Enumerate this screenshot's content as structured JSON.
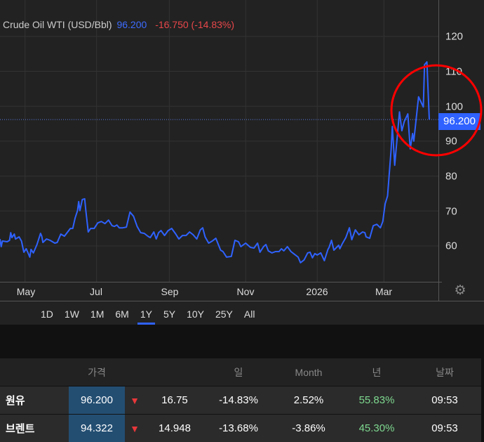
{
  "header": {
    "name": "Crude Oil WTI (USD/Bbl)",
    "price": "96.200",
    "change": "-16.750 (-14.83%)"
  },
  "colors": {
    "line": "#2f62ff",
    "down": "#e8474a",
    "up": "#7ed88f",
    "highlight_circle": "#ff0000"
  },
  "current_price_tag": "96.200",
  "chart_data": {
    "type": "line",
    "title": "Crude Oil WTI (USD/Bbl)",
    "xlabel": "",
    "ylabel": "",
    "ylim": [
      48,
      130
    ],
    "xlim": [
      0,
      367
    ],
    "y_ticks": [
      60,
      70,
      80,
      90,
      100,
      110,
      120
    ],
    "x_ticks": [
      {
        "label": "May",
        "day": 21
      },
      {
        "label": "Jul",
        "day": 81
      },
      {
        "label": "Sep",
        "day": 142
      },
      {
        "label": "Nov",
        "day": 206
      },
      {
        "label": "2026",
        "day": 266
      },
      {
        "label": "Mar",
        "day": 322
      }
    ],
    "grid": true,
    "last_value": 96.2,
    "annotation": "red circle around recent spike",
    "x": [
      0,
      1,
      2,
      6,
      8,
      9,
      10,
      12,
      13,
      16,
      18,
      20,
      22,
      25,
      26,
      28,
      31,
      34,
      35,
      36,
      39,
      42,
      46,
      48,
      51,
      54,
      59,
      61,
      63,
      65,
      66,
      67,
      69,
      71,
      72,
      74,
      76,
      79,
      82,
      85,
      88,
      91,
      94,
      96,
      98,
      100,
      103,
      106,
      109,
      112,
      115,
      118,
      121,
      124,
      126,
      129,
      131,
      133,
      135,
      138,
      141,
      144,
      147,
      150,
      153,
      156,
      159,
      162,
      165,
      168,
      170,
      172,
      175,
      178,
      181,
      185,
      187,
      190,
      194,
      197,
      200,
      202,
      206,
      210,
      213,
      216,
      218,
      221,
      223,
      225,
      228,
      231,
      234,
      236,
      238,
      241,
      244,
      247,
      250,
      252,
      255,
      258,
      260,
      262,
      264,
      266,
      269,
      272,
      275,
      276,
      278,
      280,
      284,
      285,
      287,
      290,
      293,
      295,
      298,
      301,
      304,
      306,
      307,
      310,
      313,
      316,
      319,
      321,
      323,
      325,
      328,
      329,
      331,
      335,
      337,
      339,
      342,
      344,
      346,
      347,
      351,
      355,
      356,
      358,
      360
    ],
    "values": [
      62.0,
      59.8,
      61.4,
      61.2,
      61.6,
      63.8,
      62.4,
      63.4,
      62.0,
      62.6,
      61.4,
      58.2,
      59.2,
      56.8,
      59.0,
      58.0,
      60.4,
      63.6,
      62.8,
      61.0,
      62.0,
      61.6,
      60.8,
      61.0,
      63.4,
      62.8,
      65.0,
      65.0,
      68.0,
      70.1,
      72.7,
      70.1,
      73.3,
      73.5,
      70.1,
      64.0,
      65.0,
      65.0,
      66.6,
      67.0,
      66.4,
      67.4,
      65.8,
      65.6,
      66.0,
      65.2,
      65.2,
      65.4,
      69.7,
      68.5,
      65.6,
      63.8,
      63.6,
      62.8,
      62.4,
      64.0,
      62.0,
      63.8,
      64.4,
      63.0,
      64.4,
      65.0,
      63.6,
      62.0,
      63.0,
      63.0,
      64.0,
      63.2,
      62.0,
      64.6,
      65.2,
      62.6,
      60.8,
      61.4,
      62.2,
      58.8,
      58.4,
      56.8,
      57.0,
      61.6,
      61.2,
      59.8,
      60.8,
      59.6,
      59.4,
      60.8,
      58.2,
      59.8,
      60.4,
      58.6,
      58.0,
      58.4,
      58.4,
      59.2,
      58.6,
      59.8,
      58.4,
      57.6,
      56.8,
      55.2,
      56.0,
      58.0,
      58.2,
      56.6,
      57.8,
      57.4,
      58.0,
      55.8,
      59.0,
      59.6,
      61.6,
      58.8,
      60.2,
      59.2,
      60.6,
      62.4,
      65.2,
      61.8,
      64.6,
      63.2,
      64.0,
      63.8,
      62.6,
      62.2,
      65.8,
      66.2,
      65.2,
      67.0,
      72.1,
      74.3,
      87.6,
      94.2,
      83.1,
      98.4,
      93.0,
      95.6,
      97.8,
      87.8,
      92.2,
      90.0,
      102.7,
      99.8,
      111.9,
      112.7,
      96.2
    ]
  },
  "y_axis_labels": [
    "120",
    "110",
    "100",
    "90",
    "80",
    "70",
    "60"
  ],
  "x_axis_labels": [
    "May",
    "Jul",
    "Sep",
    "Nov",
    "2026",
    "Mar"
  ],
  "ranges": [
    "1D",
    "1W",
    "1M",
    "6M",
    "1Y",
    "5Y",
    "10Y",
    "25Y",
    "All"
  ],
  "active_range": "1Y",
  "table": {
    "headers": [
      "",
      "가격",
      "",
      "",
      "일",
      "Month",
      "년",
      "날짜"
    ],
    "rows": [
      {
        "name": "원유",
        "price": "96.200",
        "direction": "down",
        "change": "16.75",
        "day": "-14.83%",
        "month": "2.52%",
        "year": "55.83%",
        "date": "09:53"
      },
      {
        "name": "브렌트",
        "price": "94.322",
        "direction": "down",
        "change": "14.948",
        "day": "-13.68%",
        "month": "-3.86%",
        "year": "45.30%",
        "date": "09:53"
      }
    ]
  }
}
